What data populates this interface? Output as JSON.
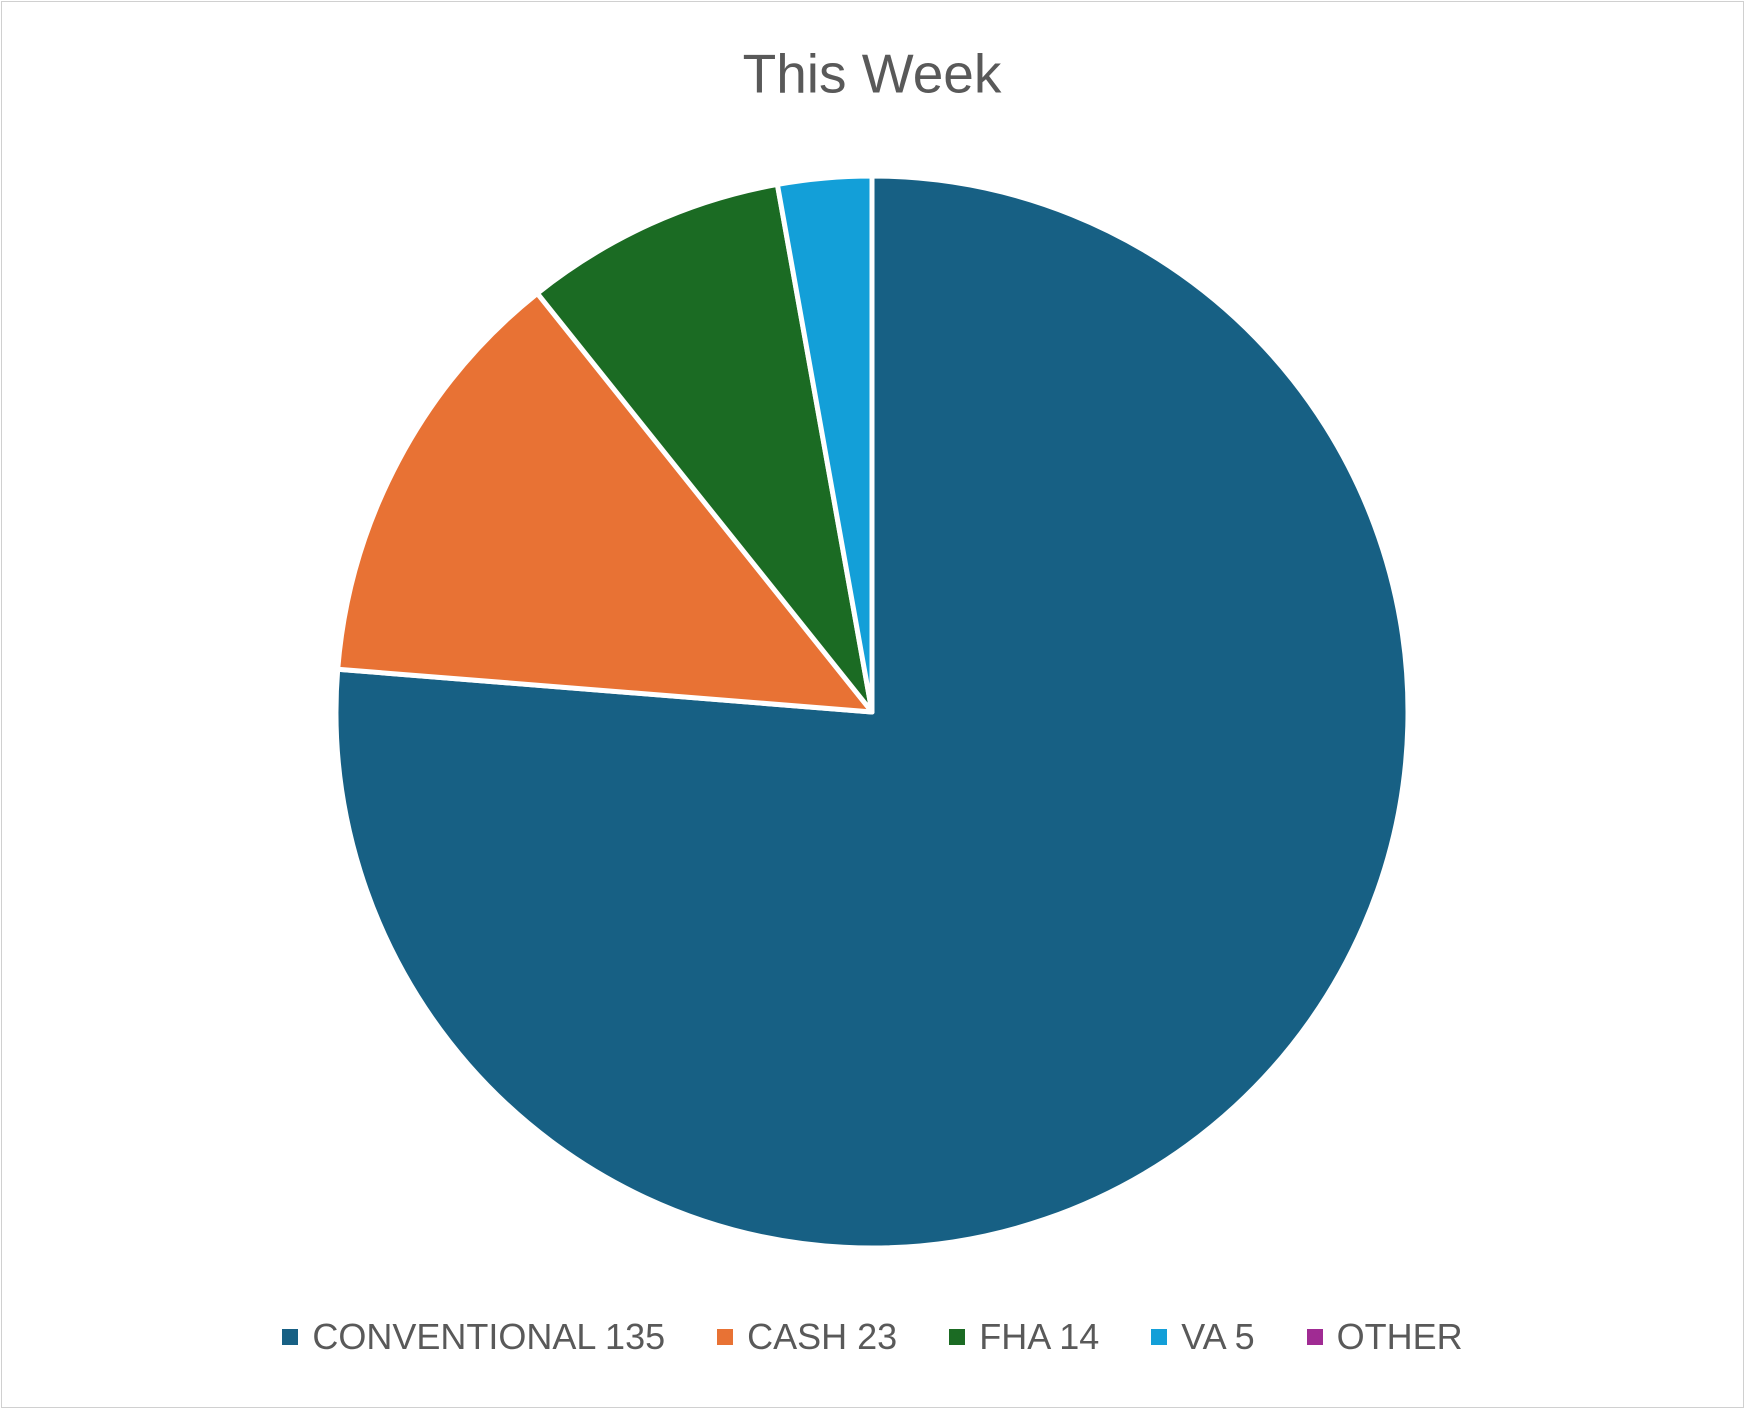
{
  "chart_data": {
    "type": "pie",
    "title": "This Week",
    "series": [
      {
        "name": "CONVENTIONAL 135",
        "color": "#176084",
        "values": [
          135
        ]
      },
      {
        "name": "CASH 23",
        "color": "#e87234",
        "values": [
          23
        ]
      },
      {
        "name": "FHA 14",
        "color": "#1b6b23",
        "values": [
          14
        ]
      },
      {
        "name": "VA 5",
        "color": "#139fd8",
        "values": [
          5
        ]
      },
      {
        "name": "OTHER",
        "color": "#a02b93",
        "values": [
          0
        ]
      }
    ]
  }
}
